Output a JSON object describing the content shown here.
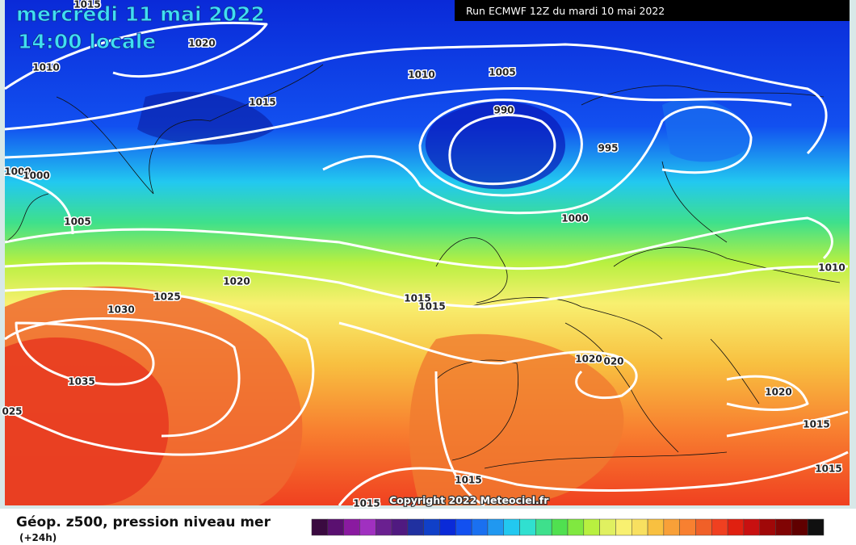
{
  "header": {
    "date": "mercredi 11 mai 2022",
    "time": "14:00 locale",
    "run": "Run ECMWF 12Z du mardi 10 mai 2022"
  },
  "isobar_labels": [
    "1015",
    "1020",
    "1010",
    "1015",
    "1010",
    "1005",
    "990",
    "995",
    "1000",
    "1000",
    "1005",
    "1000",
    "1010",
    "1020",
    "1025",
    "1015",
    "1015",
    "1030",
    "1035",
    "025",
    "1020",
    "020",
    "1020",
    "1015",
    "1015",
    "1015",
    "1015"
  ],
  "copyright": "Copyright 2022 Meteociel.fr",
  "footer": {
    "title": "Géop. z500, pression niveau mer",
    "subtitle": "(+24h)"
  }
}
